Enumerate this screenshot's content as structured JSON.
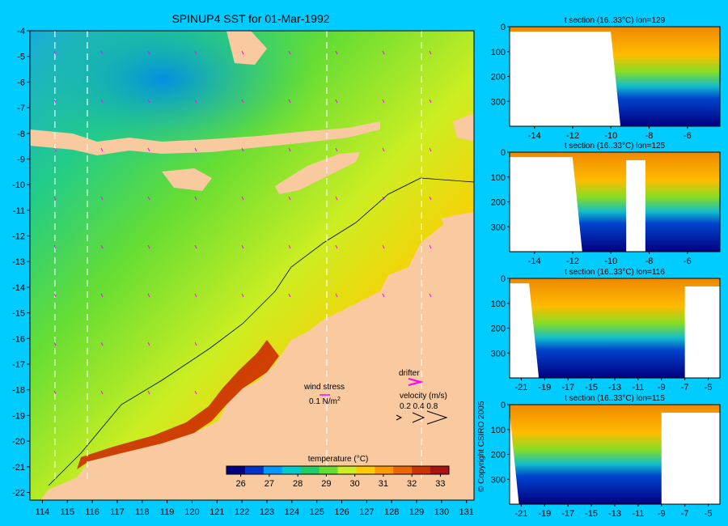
{
  "main_map": {
    "title": "SPINUP4 SST for 01-Mar-1992",
    "lat_ticks": [
      "-4",
      "-5",
      "-6",
      "-7",
      "-8",
      "-9",
      "-10",
      "-11",
      "-12",
      "-13",
      "-14",
      "-15",
      "-16",
      "-17",
      "-18",
      "-19",
      "-20",
      "-21",
      "-22"
    ],
    "lon_ticks": [
      "114",
      "115",
      "116",
      "117",
      "118",
      "119",
      "120",
      "121",
      "122",
      "123",
      "124",
      "125",
      "126",
      "127",
      "128",
      "129",
      "130",
      "131"
    ],
    "section_lines_lon": [
      114.5,
      115.8,
      125.4,
      129.2
    ],
    "colors": {
      "land": "#f9c9a0",
      "bg": "#00ccff",
      "section_line": "#ffffff",
      "vector": "#ff00ff"
    }
  },
  "wind_stress": {
    "label": "wind stress",
    "value": "0.1 N/m",
    "exponent": "2"
  },
  "drifter": {
    "label": "drifter"
  },
  "velocity": {
    "label": "velocity (m/s)",
    "scale_values": "0.2 0.4 0.8"
  },
  "colorbar": {
    "label": "temperature (°C)",
    "ticks": [
      "26",
      "27",
      "28",
      "29",
      "30",
      "31",
      "32",
      "33"
    ],
    "colors": [
      "#000080",
      "#0033cc",
      "#0099ff",
      "#00cccc",
      "#22cc66",
      "#66dd33",
      "#ccee22",
      "#ffcc00",
      "#ff9900",
      "#ee6600",
      "#cc3300",
      "#aa1111"
    ]
  },
  "copyright": "© Copyright CSIRO 2005",
  "chart_data": [
    {
      "type": "heatmap",
      "title": "SPINUP4 SST for 01-Mar-1992",
      "xlabel": "",
      "ylabel": "",
      "xlim": [
        113.5,
        131.3
      ],
      "ylim": [
        -22.3,
        -4
      ],
      "color_range": [
        25.5,
        33.3
      ],
      "units": "°C"
    },
    {
      "type": "heatmap",
      "title": "t section (16..33°C) lon=129",
      "x_ticks": [
        "-14",
        "-12",
        "-10",
        "-8",
        "-6"
      ],
      "y_ticks": [
        "0",
        "100",
        "200",
        "300"
      ],
      "xlim": [
        -15.3,
        -4.3
      ],
      "ylim": [
        400,
        0
      ],
      "shelf_edge_lat": -9.5,
      "gap_lat": null,
      "layers": {
        "warm_to_depth": 60,
        "thermocline_to_depth": 90
      }
    },
    {
      "type": "heatmap",
      "title": "t section (16..33°C) lon=125",
      "x_ticks": [
        "-14",
        "-12",
        "-10",
        "-8",
        "-6"
      ],
      "y_ticks": [
        "0",
        "100",
        "200",
        "300"
      ],
      "xlim": [
        -15.3,
        -4.3
      ],
      "ylim": [
        400,
        0
      ],
      "shelf_edge_lat": -11.5,
      "gap_lat": [
        -9.2,
        -8.2
      ],
      "layers": {
        "warm_to_depth": 60,
        "thermocline_to_depth": 110
      }
    },
    {
      "type": "heatmap",
      "title": "t section (16..33°C) lon=116",
      "x_ticks": [
        "-21",
        "-19",
        "-17",
        "-15",
        "-13",
        "-11",
        "-9",
        "-7",
        "-5"
      ],
      "y_ticks": [
        "0",
        "100",
        "200",
        "300"
      ],
      "xlim": [
        -22,
        -4
      ],
      "ylim": [
        400,
        0
      ],
      "shelf_edge_lat": -19.5,
      "gap_lat": [
        -7,
        -4
      ],
      "layers": {
        "warm_to_depth": 50,
        "thermocline_to_depth": 130
      }
    },
    {
      "type": "heatmap",
      "title": "t section (16..33°C) lon=115",
      "x_ticks": [
        "-21",
        "-19",
        "-17",
        "-15",
        "-13",
        "-11",
        "-9",
        "-7",
        "-5"
      ],
      "y_ticks": [
        "0",
        "100",
        "200",
        "300"
      ],
      "xlim": [
        -22,
        -4
      ],
      "ylim": [
        400,
        0
      ],
      "shelf_edge_lat": -21.2,
      "gap_lat": [
        -9,
        -4
      ],
      "layers": {
        "warm_to_depth": 50,
        "thermocline_to_depth": 140
      }
    }
  ]
}
